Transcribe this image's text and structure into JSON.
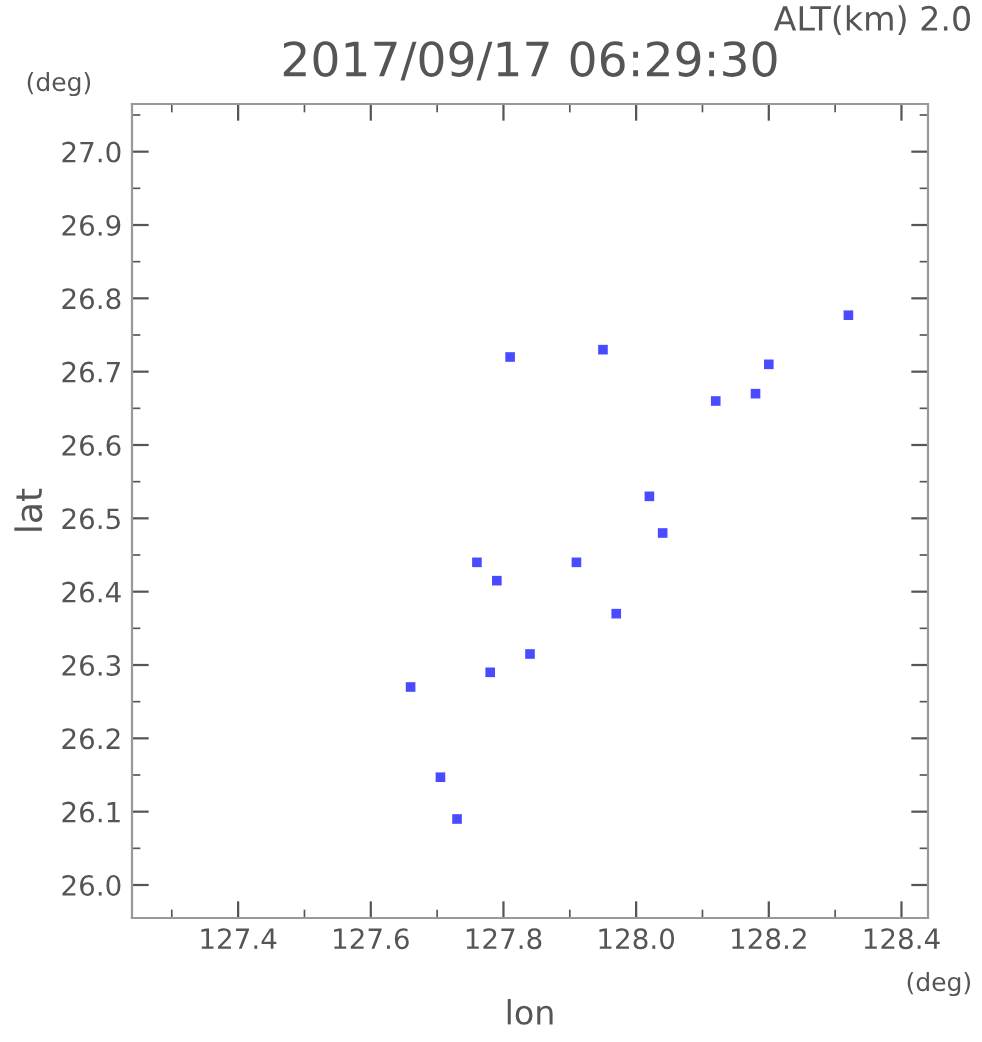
{
  "chart_data": {
    "type": "scatter",
    "title": "2017/09/17 06:29:30",
    "subtitle": "ALT(km) 2.0",
    "xlabel": "lon",
    "ylabel": "lat",
    "annotations": [
      "(deg)",
      "(deg)"
    ],
    "x": [
      128.32,
      128.2,
      128.18,
      128.12,
      127.95,
      127.81,
      128.02,
      128.04,
      127.76,
      127.79,
      127.91,
      127.97,
      127.84,
      127.78,
      127.66,
      127.705,
      127.73
    ],
    "series": [
      {
        "color": "#4a4aff",
        "values": [
          26.777,
          26.71,
          26.67,
          26.66,
          26.73,
          26.72,
          26.53,
          26.48,
          26.44,
          26.415,
          26.44,
          26.37,
          26.315,
          26.29,
          26.27,
          26.147,
          26.09
        ]
      }
    ],
    "xlim": [
      127.24,
      128.44
    ],
    "ylim": [
      25.955,
      27.065
    ],
    "xticks": [
      127.4,
      127.6,
      127.8,
      {
        "value": 128.0,
        "label": "128.0"
      },
      128.2,
      128.4
    ],
    "yticks": [
      {
        "value": 26.0,
        "label": "26.0"
      },
      26.1,
      26.2,
      26.3,
      26.4,
      26.5,
      26.6,
      26.7,
      26.8,
      26.9,
      {
        "value": 27.0,
        "label": "27.0"
      }
    ],
    "marker": "square",
    "grid": false,
    "legend": false
  }
}
